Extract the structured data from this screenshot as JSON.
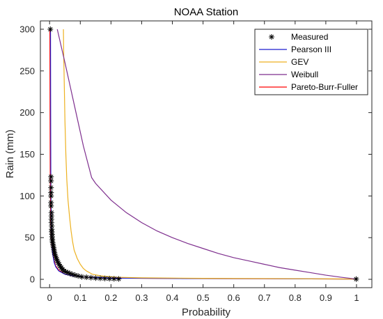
{
  "chart_data": {
    "type": "line",
    "title": "NOAA Station",
    "xlabel": "Probability",
    "ylabel": "Rain (mm)",
    "xlim": [
      -0.03,
      1.05
    ],
    "ylim": [
      -10,
      310
    ],
    "xticks": [
      0,
      0.1,
      0.2,
      0.3,
      0.4,
      0.5,
      0.6,
      0.7,
      0.8,
      0.9,
      1
    ],
    "xtick_labels": [
      "0",
      "0.1",
      "0.2",
      "0.3",
      "0.4",
      "0.5",
      "0.6",
      "0.7",
      "0.8",
      "0.9",
      "1"
    ],
    "yticks": [
      0,
      50,
      100,
      150,
      200,
      250,
      300
    ],
    "ytick_labels": [
      "0",
      "50",
      "100",
      "150",
      "200",
      "250",
      "300"
    ],
    "grid": false,
    "legend_position": "top-right",
    "series": [
      {
        "name": "Measured",
        "kind": "markers",
        "marker": "asterisk",
        "color": "#000000",
        "points": [
          [
            0.0024,
            300
          ],
          [
            0.0047,
            123
          ],
          [
            0.0047,
            118
          ],
          [
            0.0047,
            110
          ],
          [
            0.0047,
            104
          ],
          [
            0.0047,
            100
          ],
          [
            0.0047,
            92
          ],
          [
            0.0047,
            88
          ],
          [
            0.006,
            80
          ],
          [
            0.006,
            76
          ],
          [
            0.006,
            72
          ],
          [
            0.006,
            68
          ],
          [
            0.007,
            64
          ],
          [
            0.007,
            60
          ],
          [
            0.007,
            57
          ],
          [
            0.008,
            54
          ],
          [
            0.008,
            51
          ],
          [
            0.009,
            48
          ],
          [
            0.009,
            46
          ],
          [
            0.01,
            44
          ],
          [
            0.011,
            42
          ],
          [
            0.012,
            40
          ],
          [
            0.013,
            38
          ],
          [
            0.014,
            36
          ],
          [
            0.015,
            34
          ],
          [
            0.016,
            32
          ],
          [
            0.017,
            30
          ],
          [
            0.019,
            28
          ],
          [
            0.021,
            26
          ],
          [
            0.023,
            24
          ],
          [
            0.025,
            22
          ],
          [
            0.028,
            20
          ],
          [
            0.031,
            18
          ],
          [
            0.034,
            16
          ],
          [
            0.038,
            14
          ],
          [
            0.042,
            12
          ],
          [
            0.047,
            10
          ],
          [
            0.053,
            9
          ],
          [
            0.059,
            8
          ],
          [
            0.066,
            7
          ],
          [
            0.074,
            6
          ],
          [
            0.083,
            5
          ],
          [
            0.093,
            4
          ],
          [
            0.105,
            3
          ],
          [
            0.12,
            2.5
          ],
          [
            0.135,
            2
          ],
          [
            0.15,
            1.5
          ],
          [
            0.165,
            1.2
          ],
          [
            0.18,
            1
          ],
          [
            0.195,
            0.8
          ],
          [
            0.21,
            0.6
          ],
          [
            0.225,
            0.5
          ],
          [
            0.999,
            0.3
          ]
        ]
      },
      {
        "name": "Pearson III",
        "kind": "line",
        "color": "#1f1fcf",
        "points": [
          [
            0.003,
            300
          ],
          [
            0.0035,
            200
          ],
          [
            0.004,
            120
          ],
          [
            0.005,
            80
          ],
          [
            0.006,
            55
          ],
          [
            0.008,
            40
          ],
          [
            0.01,
            30
          ],
          [
            0.015,
            20
          ],
          [
            0.02,
            15
          ],
          [
            0.03,
            10
          ],
          [
            0.05,
            6
          ],
          [
            0.08,
            4
          ],
          [
            0.12,
            2.5
          ],
          [
            0.2,
            1.5
          ],
          [
            0.4,
            1
          ],
          [
            0.7,
            0.7
          ],
          [
            1.0,
            0.3
          ]
        ]
      },
      {
        "name": "GEV",
        "kind": "line",
        "color": "#edb120",
        "points": [
          [
            0.045,
            300
          ],
          [
            0.046,
            270
          ],
          [
            0.048,
            230
          ],
          [
            0.05,
            190
          ],
          [
            0.053,
            150
          ],
          [
            0.056,
            120
          ],
          [
            0.06,
            95
          ],
          [
            0.065,
            75
          ],
          [
            0.07,
            58
          ],
          [
            0.075,
            45
          ],
          [
            0.08,
            35
          ],
          [
            0.09,
            25
          ],
          [
            0.1,
            18
          ],
          [
            0.11,
            13
          ],
          [
            0.12,
            10
          ],
          [
            0.14,
            6
          ],
          [
            0.17,
            4
          ],
          [
            0.22,
            2.5
          ],
          [
            0.3,
            1.8
          ],
          [
            0.5,
            1.2
          ],
          [
            0.8,
            0.8
          ],
          [
            1.0,
            0.3
          ]
        ]
      },
      {
        "name": "Weibull",
        "kind": "line",
        "color": "#7e2f8e",
        "points": [
          [
            0.025,
            300
          ],
          [
            0.05,
            260
          ],
          [
            0.08,
            210
          ],
          [
            0.11,
            160
          ],
          [
            0.137,
            122
          ],
          [
            0.15,
            115
          ],
          [
            0.2,
            95
          ],
          [
            0.25,
            80
          ],
          [
            0.3,
            68
          ],
          [
            0.35,
            58
          ],
          [
            0.4,
            50
          ],
          [
            0.45,
            43
          ],
          [
            0.5,
            37
          ],
          [
            0.55,
            31
          ],
          [
            0.6,
            26
          ],
          [
            0.65,
            22
          ],
          [
            0.7,
            18
          ],
          [
            0.75,
            14
          ],
          [
            0.8,
            11
          ],
          [
            0.85,
            8
          ],
          [
            0.9,
            5
          ],
          [
            0.95,
            2.5
          ],
          [
            1.0,
            0.3
          ]
        ]
      },
      {
        "name": "Pareto-Burr-Fuller",
        "kind": "line",
        "color": "#ff0000",
        "points": [
          [
            0.001,
            300
          ],
          [
            0.0015,
            200
          ],
          [
            0.002,
            130
          ],
          [
            0.003,
            90
          ],
          [
            0.004,
            68
          ],
          [
            0.005,
            55
          ],
          [
            0.007,
            42
          ],
          [
            0.01,
            32
          ],
          [
            0.015,
            22
          ],
          [
            0.02,
            16
          ],
          [
            0.03,
            11
          ],
          [
            0.05,
            6
          ],
          [
            0.08,
            4
          ],
          [
            0.12,
            2.5
          ],
          [
            0.2,
            1.5
          ],
          [
            0.4,
            1
          ],
          [
            0.7,
            0.7
          ],
          [
            1.0,
            0.3
          ]
        ]
      }
    ]
  }
}
